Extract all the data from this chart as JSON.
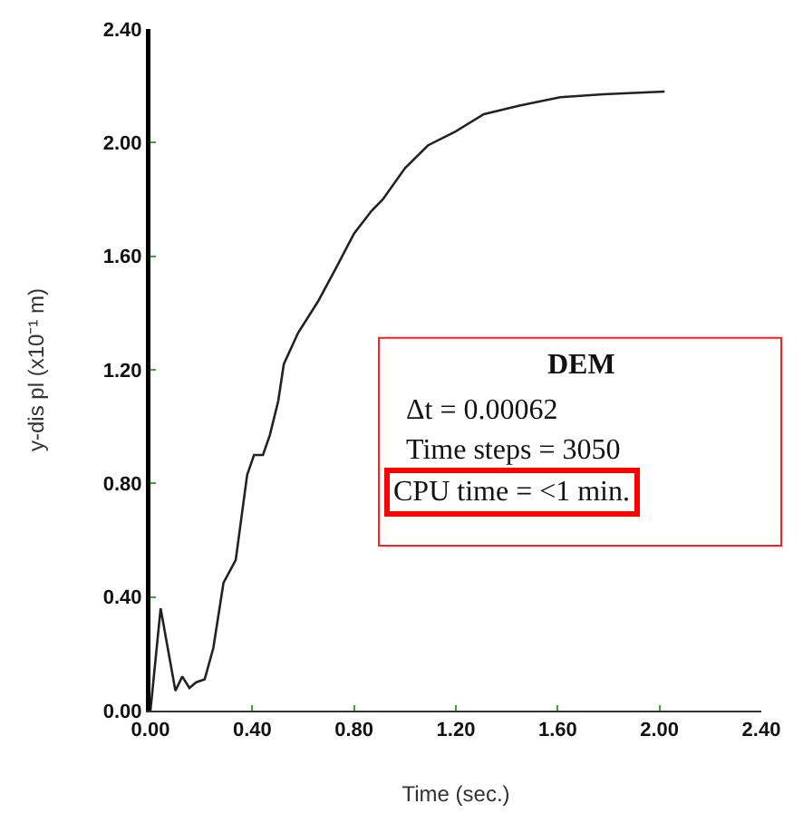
{
  "chart_data": {
    "type": "line",
    "xlabel": "Time (sec.)",
    "ylabel": "y-dis pl (x10⁻¹ m)",
    "xlim": [
      0,
      2.4
    ],
    "ylim": [
      0,
      2.4
    ],
    "xticks": [
      {
        "value": 0,
        "label": "0.00"
      },
      {
        "value": 0.4,
        "label": "0.40"
      },
      {
        "value": 0.8,
        "label": "0.80"
      },
      {
        "value": 1.2,
        "label": "1.20"
      },
      {
        "value": 1.6,
        "label": "1.60"
      },
      {
        "value": 2,
        "label": "2.00"
      },
      {
        "value": 2.4,
        "label": "2.40"
      }
    ],
    "yticks": [
      {
        "value": 0,
        "label": "0.00"
      },
      {
        "value": 0.4,
        "label": "0.40"
      },
      {
        "value": 0.8,
        "label": "0.80"
      },
      {
        "value": 1.2,
        "label": "1.20"
      },
      {
        "value": 1.6,
        "label": "1.60"
      },
      {
        "value": 2,
        "label": "2.00"
      },
      {
        "value": 2.4,
        "label": "2.40"
      }
    ],
    "series": [
      {
        "color": "#222222",
        "x": [
          0,
          0.04,
          0.098,
          0.125,
          0.153,
          0.18,
          0.213,
          0.247,
          0.287,
          0.335,
          0.38,
          0.407,
          0.442,
          0.469,
          0.502,
          0.524,
          0.58,
          0.658,
          0.724,
          0.8,
          0.869,
          0.913,
          1.0,
          1.09,
          1.2,
          1.31,
          1.45,
          1.61,
          1.78,
          2.02
        ],
        "values": [
          0,
          0.36,
          0.07,
          0.12,
          0.08,
          0.1,
          0.11,
          0.22,
          0.45,
          0.53,
          0.83,
          0.9,
          0.9,
          0.97,
          1.09,
          1.22,
          1.33,
          1.44,
          1.55,
          1.68,
          1.76,
          1.8,
          1.91,
          1.99,
          2.04,
          2.1,
          2.13,
          2.16,
          2.17,
          2.18
        ]
      }
    ],
    "annotations": [
      "DEM",
      "Δt = 0.00062",
      "Time steps = 3050",
      "CPU time = <1 min."
    ],
    "marker": "none",
    "line_style": "solid"
  }
}
